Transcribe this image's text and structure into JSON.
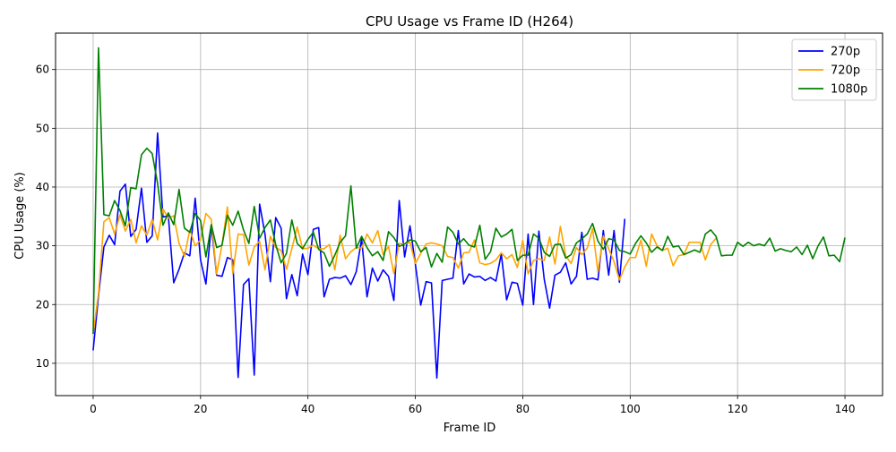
{
  "chart_data": {
    "type": "line",
    "title": "CPU Usage vs Frame ID (H264)",
    "xlabel": "Frame ID",
    "ylabel": "CPU Usage (%)",
    "xlim": [
      -7,
      147
    ],
    "ylim": [
      4.5,
      66.2
    ],
    "xticks": [
      0,
      20,
      40,
      60,
      80,
      100,
      120,
      140
    ],
    "yticks": [
      10,
      20,
      30,
      40,
      50,
      60
    ],
    "grid": true,
    "legend_position": "top-right",
    "series": [
      {
        "name": "270p",
        "color": "#0000ff",
        "x": [
          0,
          1,
          2,
          3,
          4,
          5,
          6,
          7,
          8,
          9,
          10,
          11,
          12,
          13,
          14,
          15,
          16,
          17,
          18,
          19,
          20,
          21,
          22,
          23,
          24,
          25,
          26,
          27,
          28,
          29,
          30,
          31,
          32,
          33,
          34,
          35,
          36,
          37,
          38,
          39,
          40,
          41,
          42,
          43,
          44,
          45,
          46,
          47,
          48,
          49,
          50,
          51,
          52,
          53,
          54,
          55,
          56,
          57,
          58,
          59,
          60,
          61,
          62,
          63,
          64,
          65,
          66,
          67,
          68,
          69,
          70,
          71,
          72,
          73,
          74,
          75,
          76,
          77,
          78,
          79,
          80,
          81,
          82,
          83,
          84,
          85,
          86,
          87,
          88,
          89,
          90,
          91,
          92,
          93,
          94,
          95,
          96,
          97,
          98,
          99
        ],
        "y": [
          12.2,
          21.5,
          29.8,
          31.8,
          30.2,
          39.3,
          40.5,
          31.6,
          32.8,
          39.8,
          30.6,
          31.7,
          49.2,
          34.9,
          35.1,
          23.7,
          26.0,
          28.8,
          28.3,
          38.1,
          27.6,
          23.5,
          33.5,
          25.0,
          24.8,
          28.0,
          27.6,
          7.6,
          23.4,
          24.4,
          8.0,
          37.1,
          32.0,
          23.9,
          34.8,
          33.0,
          21.0,
          25.1,
          21.5,
          28.6,
          25.1,
          32.8,
          33.1,
          21.3,
          24.3,
          24.6,
          24.5,
          24.9,
          23.4,
          25.6,
          31.2,
          21.3,
          26.2,
          24.0,
          25.9,
          24.8,
          20.7,
          37.7,
          28.1,
          33.4,
          26.9,
          19.9,
          23.9,
          23.7,
          7.5,
          24.1,
          24.3,
          24.5,
          32.6,
          23.5,
          25.2,
          24.7,
          24.8,
          24.1,
          24.6,
          24.0,
          28.6,
          20.8,
          23.8,
          23.6,
          19.9,
          32.0,
          20.0,
          32.5,
          24.3,
          19.4,
          25.0,
          25.5,
          27.1,
          23.5,
          24.8,
          32.3,
          24.3,
          24.5,
          24.2,
          32.6,
          25.0,
          32.6,
          23.8,
          34.6
        ]
      },
      {
        "name": "720p",
        "color": "#ffa500",
        "x": [
          0,
          1,
          2,
          3,
          4,
          5,
          6,
          7,
          8,
          9,
          10,
          11,
          12,
          13,
          14,
          15,
          16,
          17,
          18,
          19,
          20,
          21,
          22,
          23,
          24,
          25,
          26,
          27,
          28,
          29,
          30,
          31,
          32,
          33,
          34,
          35,
          36,
          37,
          38,
          39,
          40,
          41,
          42,
          43,
          44,
          45,
          46,
          47,
          48,
          49,
          50,
          51,
          52,
          53,
          54,
          55,
          56,
          57,
          58,
          59,
          60,
          61,
          62,
          63,
          64,
          65,
          66,
          67,
          68,
          69,
          70,
          71,
          72,
          73,
          74,
          75,
          76,
          77,
          78,
          79,
          80,
          81,
          82,
          83,
          84,
          85,
          86,
          87,
          88,
          89,
          90,
          91,
          92,
          93,
          94,
          95,
          96,
          97,
          98,
          99,
          100,
          101,
          102,
          103,
          104,
          105,
          106,
          107,
          108,
          109,
          110,
          111,
          112,
          113,
          114,
          115,
          116
        ],
        "y": [
          15.0,
          22.0,
          34.1,
          34.8,
          32.0,
          35.3,
          32.5,
          34.5,
          30.5,
          33.4,
          31.8,
          34.5,
          31.0,
          36.3,
          34.7,
          35.1,
          30.4,
          28.2,
          32.7,
          30.0,
          31.0,
          35.5,
          34.5,
          25.2,
          30.2,
          36.6,
          25.3,
          32.0,
          31.9,
          26.7,
          29.8,
          30.8,
          25.9,
          31.6,
          29.7,
          29.2,
          26.0,
          29.5,
          33.2,
          29.5,
          29.6,
          30.1,
          29.5,
          29.5,
          30.2,
          25.9,
          31.8,
          27.8,
          29.0,
          29.7,
          29.6,
          32.0,
          30.5,
          32.6,
          28.5,
          29.9,
          25.3,
          30.4,
          30.3,
          30.6,
          27.0,
          28.7,
          30.3,
          30.5,
          30.3,
          30.0,
          28.2,
          28.0,
          26.2,
          28.8,
          28.9,
          31.0,
          27.1,
          26.8,
          27.0,
          27.6,
          28.8,
          27.8,
          28.5,
          26.3,
          30.9,
          25.2,
          27.5,
          27.8,
          27.5,
          31.5,
          26.9,
          33.3,
          28.3,
          27.0,
          29.7,
          28.5,
          29.6,
          32.9,
          25.6,
          31.7,
          29.5,
          27.3,
          24.2,
          26.4,
          28.0,
          28.0,
          31.0,
          26.5,
          32.0,
          30.0,
          29.2,
          29.6,
          26.6,
          28.3,
          28.5,
          30.6,
          30.6,
          30.6,
          27.6,
          30.2,
          31.3
        ]
      },
      {
        "name": "1080p",
        "color": "#008000",
        "x": [
          0,
          1,
          2,
          3,
          4,
          5,
          6,
          7,
          8,
          9,
          10,
          11,
          12,
          13,
          14,
          15,
          16,
          17,
          18,
          19,
          20,
          21,
          22,
          23,
          24,
          25,
          26,
          27,
          28,
          29,
          30,
          31,
          32,
          33,
          34,
          35,
          36,
          37,
          38,
          39,
          40,
          41,
          42,
          43,
          44,
          45,
          46,
          47,
          48,
          49,
          50,
          51,
          52,
          53,
          54,
          55,
          56,
          57,
          58,
          59,
          60,
          61,
          62,
          63,
          64,
          65,
          66,
          67,
          68,
          69,
          70,
          71,
          72,
          73,
          74,
          75,
          76,
          77,
          78,
          79,
          80,
          81,
          82,
          83,
          84,
          85,
          86,
          87,
          88,
          89,
          90,
          91,
          92,
          93,
          94,
          95,
          96,
          97,
          98,
          99,
          100,
          101,
          102,
          103,
          104,
          105,
          106,
          107,
          108,
          109,
          110,
          111,
          112,
          113,
          114,
          115,
          116,
          117,
          118,
          119,
          120,
          121,
          122,
          123,
          124,
          125,
          126,
          127,
          128,
          129,
          130,
          131,
          132,
          133,
          134,
          135,
          136,
          137,
          138,
          139,
          140
        ],
        "y": [
          15.0,
          63.7,
          35.3,
          35.1,
          37.7,
          36.0,
          33.4,
          39.9,
          39.7,
          45.5,
          46.6,
          45.7,
          40.6,
          33.5,
          35.6,
          33.6,
          39.6,
          33.0,
          32.3,
          35.5,
          34.3,
          28.1,
          33.6,
          29.7,
          30.1,
          35.2,
          33.5,
          35.9,
          32.7,
          30.4,
          36.7,
          31.3,
          33.1,
          34.4,
          30.2,
          27.1,
          28.7,
          34.4,
          30.4,
          29.5,
          31.1,
          32.3,
          29.4,
          28.8,
          26.5,
          28.4,
          30.6,
          31.7,
          40.2,
          29.6,
          31.6,
          29.7,
          28.3,
          29.0,
          27.5,
          32.4,
          31.4,
          29.9,
          30.3,
          31.0,
          30.8,
          29.0,
          29.7,
          26.4,
          28.7,
          27.2,
          33.2,
          32.3,
          30.3,
          31.2,
          30.1,
          29.8,
          33.5,
          27.7,
          29.0,
          33.0,
          31.5,
          32.0,
          32.8,
          27.5,
          28.4,
          28.4,
          32.0,
          31.3,
          28.9,
          28.2,
          30.2,
          30.3,
          27.9,
          28.5,
          30.5,
          31.2,
          32.0,
          33.8,
          30.8,
          29.4,
          31.2,
          31.0,
          29.2,
          29.0,
          28.6,
          30.4,
          31.7,
          30.5,
          28.9,
          29.8,
          29.2,
          31.6,
          29.8,
          30.0,
          28.5,
          28.9,
          29.3,
          28.9,
          32.0,
          32.7,
          31.6,
          28.3,
          28.4,
          28.4,
          30.6,
          29.9,
          30.6,
          30.0,
          30.3,
          30.0,
          31.3,
          29.1,
          29.5,
          29.2,
          29.0,
          29.8,
          28.5,
          30.1,
          27.8,
          30.0,
          31.5,
          28.3,
          28.4,
          27.3,
          31.4
        ]
      }
    ]
  }
}
